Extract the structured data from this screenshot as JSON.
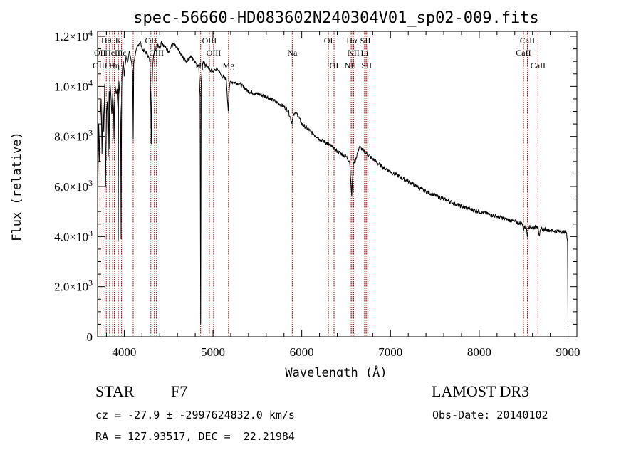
{
  "chart_data": {
    "type": "line",
    "title": "spec-56660-HD083602N240304V01_sp02-009.fits",
    "xlabel": "Wavelength (Å)",
    "ylabel": "Flux (relative)",
    "xlim": [
      3700,
      9100
    ],
    "ylim": [
      0,
      12200
    ],
    "x_ticks": [
      {
        "value": 4000,
        "label": "4000"
      },
      {
        "value": 5000,
        "label": "5000"
      },
      {
        "value": 6000,
        "label": "6000"
      },
      {
        "value": 7000,
        "label": "7000"
      },
      {
        "value": 8000,
        "label": "8000"
      },
      {
        "value": 9000,
        "label": "9000"
      }
    ],
    "y_ticks": [
      {
        "value": 0,
        "mant": "0",
        "exp": ""
      },
      {
        "value": 2000,
        "mant": "2.0×10",
        "exp": "3"
      },
      {
        "value": 4000,
        "mant": "4.0×10",
        "exp": "3"
      },
      {
        "value": 6000,
        "mant": "6.0×10",
        "exp": "3"
      },
      {
        "value": 8000,
        "mant": "8.0×10",
        "exp": "3"
      },
      {
        "value": 10000,
        "mant": "1.0×10",
        "exp": "4"
      },
      {
        "value": 12000,
        "mant": "1.2×10",
        "exp": "4"
      }
    ],
    "series": [
      {
        "name": "flux",
        "x": [
          3700,
          3705,
          3712,
          3720,
          3730,
          3740,
          3750,
          3760,
          3770,
          3780,
          3790,
          3800,
          3810,
          3820,
          3830,
          3835,
          3840,
          3850,
          3860,
          3870,
          3880,
          3885,
          3890,
          3900,
          3910,
          3920,
          3930,
          3933,
          3936,
          3940,
          3950,
          3960,
          3965,
          3968,
          3971,
          3975,
          3990,
          4000,
          4020,
          4040,
          4060,
          4080,
          4095,
          4101,
          4107,
          4120,
          4150,
          4180,
          4200,
          4230,
          4260,
          4290,
          4300,
          4305,
          4310,
          4320,
          4335,
          4340,
          4345,
          4360,
          4380,
          4400,
          4420,
          4450,
          4500,
          4550,
          4600,
          4650,
          4700,
          4750,
          4800,
          4840,
          4855,
          4861,
          4867,
          4880,
          4900,
          4925,
          4950,
          5000,
          5050,
          5100,
          5150,
          5167,
          5172,
          5177,
          5185,
          5200,
          5300,
          5400,
          5500,
          5600,
          5700,
          5800,
          5850,
          5885,
          5890,
          5896,
          5905,
          5950,
          6000,
          6100,
          6200,
          6300,
          6400,
          6500,
          6540,
          6555,
          6563,
          6570,
          6585,
          6600,
          6650,
          6700,
          6800,
          6900,
          7000,
          7200,
          7400,
          7600,
          7800,
          8000,
          8200,
          8400,
          8490,
          8498,
          8506,
          8530,
          8542,
          8554,
          8600,
          8650,
          8662,
          8674,
          8700,
          8800,
          8900,
          8960,
          8985,
          8995,
          9000
        ],
        "y": [
          2800,
          6500,
          8500,
          7000,
          8800,
          9500,
          7300,
          9400,
          8200,
          10100,
          6000,
          9000,
          9400,
          7200,
          9800,
          7500,
          10200,
          9600,
          8900,
          9700,
          9100,
          7900,
          9300,
          10000,
          9700,
          9900,
          9000,
          3800,
          9600,
          10200,
          9700,
          8600,
          3900,
          7100,
          9800,
          10500,
          11000,
          10400,
          11200,
          11000,
          11400,
          11000,
          10600,
          7900,
          10900,
          11200,
          11600,
          11800,
          11500,
          11400,
          11300,
          11000,
          9200,
          7700,
          9400,
          10900,
          11300,
          11400,
          11600,
          11400,
          11700,
          11500,
          11800,
          11600,
          11400,
          11700,
          11500,
          11200,
          11000,
          11200,
          11000,
          10800,
          9600,
          500,
          10100,
          10900,
          11000,
          10800,
          10700,
          10600,
          10700,
          10400,
          10300,
          9300,
          9000,
          9500,
          10000,
          10200,
          10100,
          9800,
          9700,
          9600,
          9400,
          9200,
          9000,
          8600,
          8500,
          8700,
          8900,
          8900,
          8500,
          8200,
          7900,
          7700,
          7400,
          7200,
          7000,
          6100,
          5600,
          6200,
          7000,
          7000,
          7600,
          7400,
          7100,
          6800,
          6600,
          6200,
          5800,
          5500,
          5200,
          5000,
          4800,
          4600,
          4500,
          4200,
          4400,
          4350,
          4000,
          4400,
          4350,
          4400,
          4450,
          4050,
          4300,
          4250,
          4200,
          4200,
          4100,
          3800,
          700
        ]
      }
    ],
    "spectral_lines": [
      {
        "label": "Hθ",
        "wave": 3798,
        "row": 1
      },
      {
        "label": "K",
        "wave": 3934,
        "row": 1
      },
      {
        "label": "OII",
        "wave": 3727,
        "row": 2
      },
      {
        "label": "HeII",
        "wave": 3869,
        "row": 2
      },
      {
        "label": "Hε",
        "wave": 3970,
        "row": 2
      },
      {
        "label": "OIII",
        "wave": 3727,
        "row": 3
      },
      {
        "label": "Hη",
        "wave": 3889,
        "row": 3
      },
      {
        "label": "OII",
        "wave": 4300,
        "row": 1
      },
      {
        "label": "OIII",
        "wave": 4363,
        "row": 2
      },
      {
        "label": "OIII",
        "wave": 4959,
        "row": 1
      },
      {
        "label": "OIII",
        "wave": 5007,
        "row": 2
      },
      {
        "label": "Hβ",
        "wave": 4861,
        "row": 3
      },
      {
        "label": "Mg",
        "wave": 5175,
        "row": 3
      },
      {
        "label": "Na",
        "wave": 5893,
        "row": 2
      },
      {
        "label": "OI",
        "wave": 6300,
        "row": 1
      },
      {
        "label": "OI",
        "wave": 6364,
        "row": 3
      },
      {
        "label": "Hα",
        "wave": 6563,
        "row": 1
      },
      {
        "label": "NII",
        "wave": 6584,
        "row": 2
      },
      {
        "label": "SII",
        "wave": 6717,
        "row": 1
      },
      {
        "label": "Li",
        "wave": 6708,
        "row": 2
      },
      {
        "label": "NII",
        "wave": 6548,
        "row": 3
      },
      {
        "label": "SII",
        "wave": 6731,
        "row": 3
      },
      {
        "label": "CaII",
        "wave": 8542,
        "row": 1
      },
      {
        "label": "CaII",
        "wave": 8498,
        "row": 2
      },
      {
        "label": "CaII",
        "wave": 8662,
        "row": 3
      }
    ],
    "spectral_line_waves": [
      3727,
      3798,
      3835,
      3869,
      3889,
      3934,
      3970,
      4101,
      4300,
      4340,
      4363,
      4861,
      4959,
      5007,
      5175,
      5893,
      6300,
      6364,
      6548,
      6563,
      6584,
      6708,
      6717,
      6731,
      8498,
      8542,
      8662
    ]
  },
  "info": {
    "object_type": "STAR",
    "subclass": "F7",
    "survey": "LAMOST DR3",
    "redshift": "cz = -27.9 ± -2997624832.0 km/s",
    "obs_date": "Obs-Date: 20140102",
    "coords": "RA = 127.93517, DEC =  22.21984"
  },
  "colors": {
    "line_marker": "#a00000",
    "spectrum": "#000000"
  }
}
